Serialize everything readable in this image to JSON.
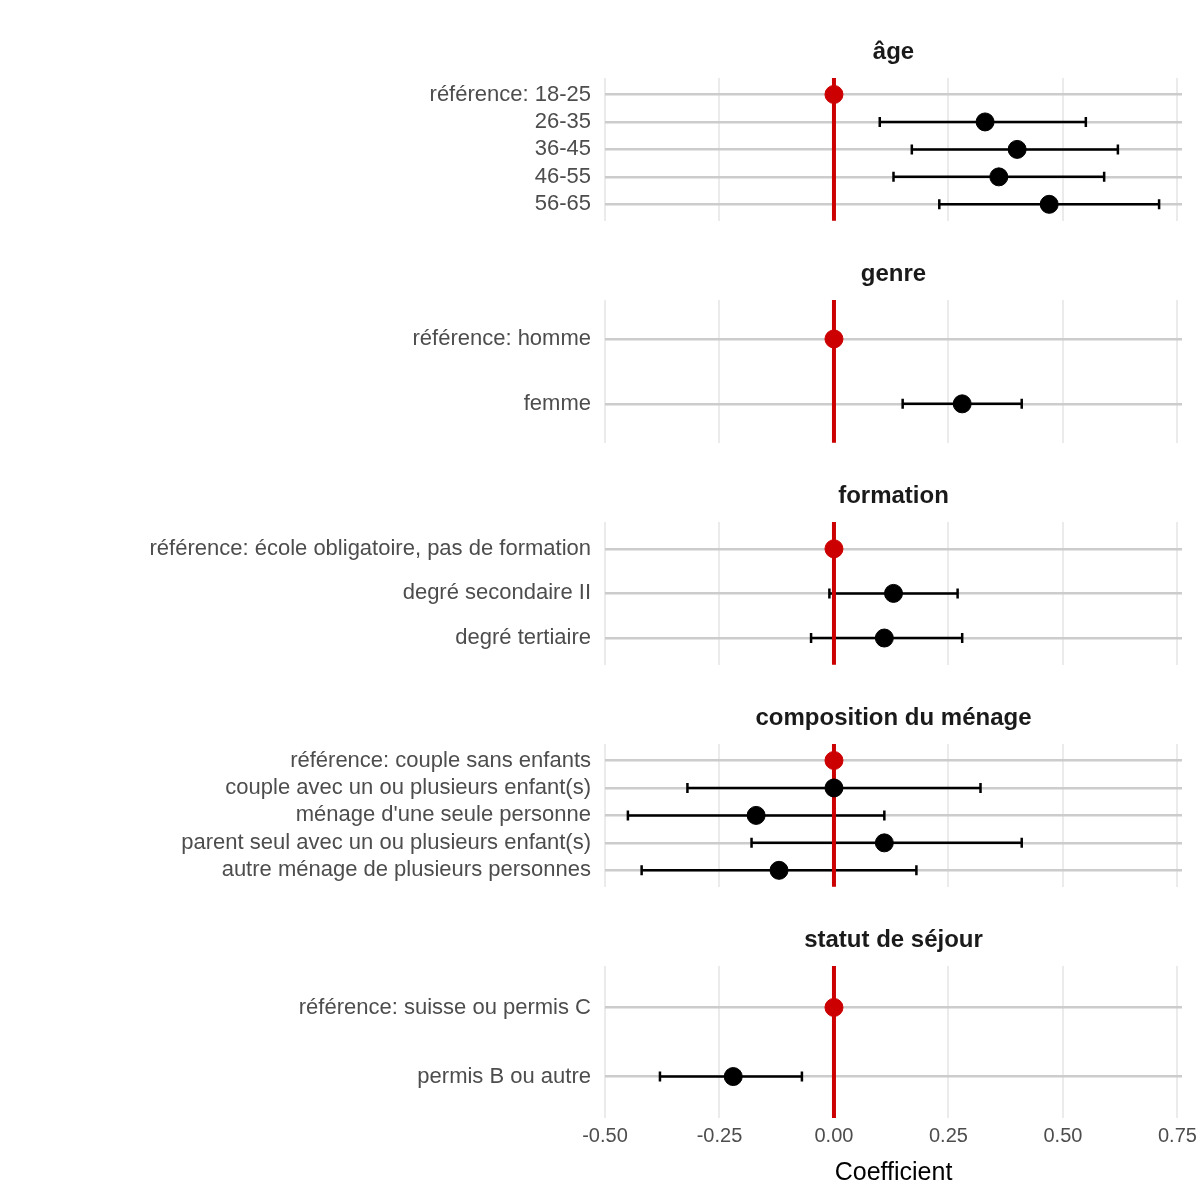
{
  "chart_data": [
    {
      "type": "scatter",
      "orientation": "horizontal",
      "title": "âge",
      "categories": [
        "référence: 18-25",
        "26-35",
        "36-45",
        "46-55",
        "56-65"
      ],
      "values": [
        0,
        0.33,
        0.4,
        0.36,
        0.47
      ],
      "errors": [
        null,
        [
          0.1,
          0.55
        ],
        [
          0.17,
          0.62
        ],
        [
          0.13,
          0.59
        ],
        [
          0.23,
          0.71
        ]
      ],
      "colors": [
        "#cc0000",
        "#000000",
        "#000000",
        "#000000",
        "#000000"
      ],
      "marker": "circle",
      "ref_lines": [
        {
          "axis": "x",
          "value": 0,
          "color": "#cc0000"
        }
      ],
      "xlim": [
        -0.5,
        0.76
      ],
      "xticks": [
        {
          "value": -0.5,
          "label": null
        },
        {
          "value": -0.25,
          "label": null
        },
        {
          "value": 0,
          "label": null
        },
        {
          "value": 0.25,
          "label": null
        },
        {
          "value": 0.5,
          "label": null
        },
        {
          "value": 0.75,
          "label": null
        }
      ],
      "grid": true,
      "tick_labels": "y"
    },
    {
      "type": "scatter",
      "orientation": "horizontal",
      "title": "genre",
      "categories": [
        "référence: homme",
        "femme"
      ],
      "values": [
        0,
        0.28
      ],
      "errors": [
        null,
        [
          0.15,
          0.41
        ]
      ],
      "colors": [
        "#cc0000",
        "#000000"
      ],
      "marker": "circle",
      "ref_lines": [
        {
          "axis": "x",
          "value": 0,
          "color": "#cc0000"
        }
      ],
      "xlim": [
        -0.5,
        0.76
      ],
      "xticks": [
        {
          "value": -0.5,
          "label": null
        },
        {
          "value": -0.25,
          "label": null
        },
        {
          "value": 0,
          "label": null
        },
        {
          "value": 0.25,
          "label": null
        },
        {
          "value": 0.5,
          "label": null
        },
        {
          "value": 0.75,
          "label": null
        }
      ],
      "grid": true,
      "tick_labels": "y"
    },
    {
      "type": "scatter",
      "orientation": "horizontal",
      "title": "formation",
      "categories": [
        "référence: école obligatoire, pas de formation",
        "degré secondaire II",
        "degré tertiaire"
      ],
      "values": [
        0,
        0.13,
        0.11
      ],
      "errors": [
        null,
        [
          -0.01,
          0.27
        ],
        [
          -0.05,
          0.28
        ]
      ],
      "colors": [
        "#cc0000",
        "#000000",
        "#000000"
      ],
      "marker": "circle",
      "ref_lines": [
        {
          "axis": "x",
          "value": 0,
          "color": "#cc0000"
        }
      ],
      "xlim": [
        -0.5,
        0.76
      ],
      "xticks": [
        {
          "value": -0.5,
          "label": null
        },
        {
          "value": -0.25,
          "label": null
        },
        {
          "value": 0,
          "label": null
        },
        {
          "value": 0.25,
          "label": null
        },
        {
          "value": 0.5,
          "label": null
        },
        {
          "value": 0.75,
          "label": null
        }
      ],
      "grid": true,
      "tick_labels": "y"
    },
    {
      "type": "scatter",
      "orientation": "horizontal",
      "title": "composition du ménage",
      "categories": [
        "référence: couple sans enfants",
        "couple avec un ou plusieurs enfant(s)",
        "ménage d'une seule personne",
        "parent seul avec un ou plusieurs enfant(s)",
        "autre ménage de plusieurs personnes"
      ],
      "values": [
        0,
        0.0,
        -0.17,
        0.11,
        -0.12
      ],
      "errors": [
        null,
        [
          -0.32,
          0.32
        ],
        [
          -0.45,
          0.11
        ],
        [
          -0.18,
          0.41
        ],
        [
          -0.42,
          0.18
        ]
      ],
      "colors": [
        "#cc0000",
        "#000000",
        "#000000",
        "#000000",
        "#000000"
      ],
      "marker": "circle",
      "ref_lines": [
        {
          "axis": "x",
          "value": 0,
          "color": "#cc0000"
        }
      ],
      "xlim": [
        -0.5,
        0.76
      ],
      "xticks": [
        {
          "value": -0.5,
          "label": null
        },
        {
          "value": -0.25,
          "label": null
        },
        {
          "value": 0,
          "label": null
        },
        {
          "value": 0.25,
          "label": null
        },
        {
          "value": 0.5,
          "label": null
        },
        {
          "value": 0.75,
          "label": null
        }
      ],
      "grid": true,
      "tick_labels": "y"
    },
    {
      "type": "scatter",
      "orientation": "horizontal",
      "title": "statut de séjour",
      "xlabel": "Coefficient",
      "categories": [
        "référence: suisse ou permis C",
        "permis B ou autre"
      ],
      "values": [
        0,
        -0.22
      ],
      "errors": [
        null,
        [
          -0.38,
          -0.07
        ]
      ],
      "colors": [
        "#cc0000",
        "#000000"
      ],
      "marker": "circle",
      "ref_lines": [
        {
          "axis": "x",
          "value": 0,
          "color": "#cc0000"
        }
      ],
      "xlim": [
        -0.5,
        0.76
      ],
      "xticks": [
        {
          "value": -0.5,
          "label": "-0.50"
        },
        {
          "value": -0.25,
          "label": "-0.25"
        },
        {
          "value": 0,
          "label": "0.00"
        },
        {
          "value": 0.25,
          "label": "0.25"
        },
        {
          "value": 0.5,
          "label": "0.50"
        },
        {
          "value": 0.75,
          "label": "0.75"
        }
      ],
      "grid": true
    }
  ]
}
